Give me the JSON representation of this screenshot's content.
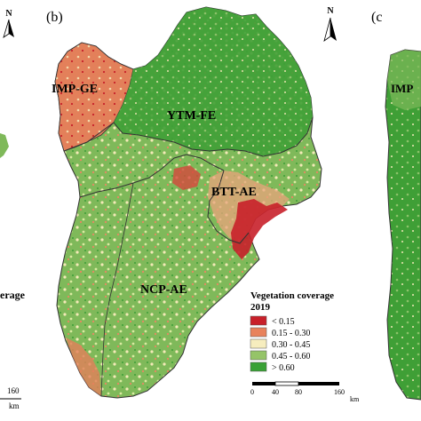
{
  "panels": {
    "left_fragment": {
      "north": "N",
      "legend_partial": "erage",
      "scale_partial": "160",
      "unit": "km"
    },
    "middle": {
      "label": "(b)",
      "north": "N",
      "regions": [
        "IMP-GE",
        "YTM-FE",
        "BTT-AE",
        "NCP-AE"
      ],
      "legend": {
        "title_line1": "Vegetation coverage",
        "title_line2": "2019",
        "classes": [
          {
            "label": "< 0.15",
            "color": "#c8202a"
          },
          {
            "label": "0.15 - 0.30",
            "color": "#e8825c"
          },
          {
            "label": "0.30 - 0.45",
            "color": "#f6edbe"
          },
          {
            "label": "0.45 - 0.60",
            "color": "#95c468"
          },
          {
            "label": "> 0.60",
            "color": "#39a135"
          }
        ]
      },
      "scale_bar": {
        "ticks": [
          "0",
          "40",
          "80",
          "160"
        ],
        "unit": "km"
      }
    },
    "right_fragment": {
      "label": "(c",
      "region_partial": "IMP"
    }
  }
}
